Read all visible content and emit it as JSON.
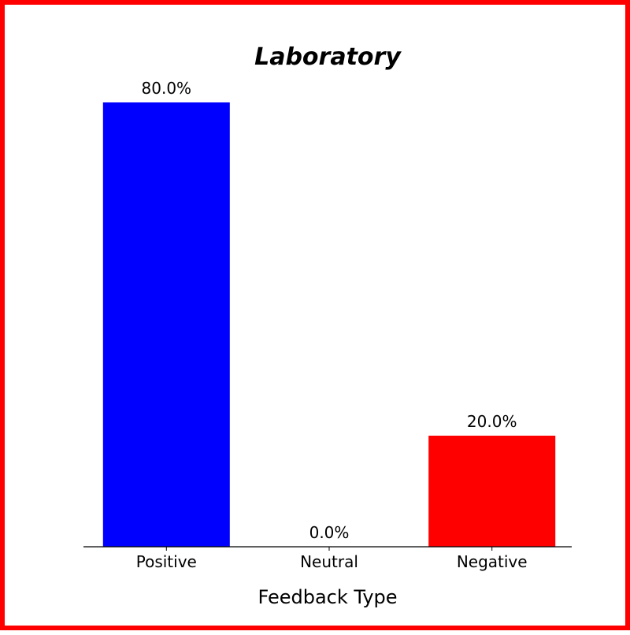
{
  "chart_data": {
    "type": "bar",
    "title": "Laboratory",
    "xlabel": "Feedback Type",
    "ylabel": "",
    "categories": [
      "Positive",
      "Neutral",
      "Negative"
    ],
    "values": [
      80.0,
      0.0,
      20.0
    ],
    "value_labels": [
      "80.0%",
      "0.0%",
      "20.0%"
    ],
    "bar_colors": [
      "#0000ff",
      "#ffffff",
      "#ff0000"
    ],
    "ylim": [
      0,
      80
    ],
    "grid": false,
    "legend": "none",
    "frame_color": "#ff0000"
  }
}
